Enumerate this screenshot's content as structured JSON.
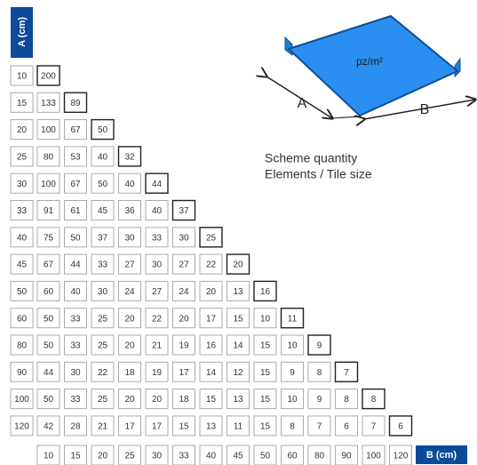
{
  "axis_a_label": "A (cm)",
  "axis_b_label": "B (cm)",
  "scheme": {
    "unit_label": "pz/m²",
    "arrow_a": "A",
    "arrow_b": "B",
    "caption_line1": "Scheme quantity",
    "caption_line2": "Elements / Tile size"
  },
  "columns": [
    "10",
    "15",
    "20",
    "25",
    "30",
    "33",
    "40",
    "45",
    "50",
    "60",
    "80",
    "90",
    "100",
    "120"
  ],
  "rows": [
    {
      "a": "10",
      "cells": [
        "200"
      ]
    },
    {
      "a": "15",
      "cells": [
        "133",
        "89"
      ]
    },
    {
      "a": "20",
      "cells": [
        "100",
        "67",
        "50"
      ]
    },
    {
      "a": "25",
      "cells": [
        "80",
        "53",
        "40",
        "32"
      ]
    },
    {
      "a": "30",
      "cells": [
        "100",
        "67",
        "50",
        "40",
        "44"
      ]
    },
    {
      "a": "33",
      "cells": [
        "91",
        "61",
        "45",
        "36",
        "40",
        "37"
      ]
    },
    {
      "a": "40",
      "cells": [
        "75",
        "50",
        "37",
        "30",
        "33",
        "30",
        "25"
      ]
    },
    {
      "a": "45",
      "cells": [
        "67",
        "44",
        "33",
        "27",
        "30",
        "27",
        "22",
        "20"
      ]
    },
    {
      "a": "50",
      "cells": [
        "60",
        "40",
        "30",
        "24",
        "27",
        "24",
        "20",
        "13",
        "16"
      ]
    },
    {
      "a": "60",
      "cells": [
        "50",
        "33",
        "25",
        "20",
        "22",
        "20",
        "17",
        "15",
        "10",
        "11"
      ]
    },
    {
      "a": "80",
      "cells": [
        "50",
        "33",
        "25",
        "20",
        "21",
        "19",
        "16",
        "14",
        "15",
        "10",
        "9"
      ]
    },
    {
      "a": "90",
      "cells": [
        "44",
        "30",
        "22",
        "18",
        "19",
        "17",
        "14",
        "12",
        "15",
        "9",
        "8",
        "7"
      ]
    },
    {
      "a": "100",
      "cells": [
        "50",
        "33",
        "25",
        "20",
        "20",
        "18",
        "15",
        "13",
        "15",
        "10",
        "9",
        "8",
        "8"
      ]
    },
    {
      "a": "120",
      "cells": [
        "42",
        "28",
        "21",
        "17",
        "17",
        "15",
        "13",
        "11",
        "15",
        "8",
        "7",
        "6",
        "7",
        "6"
      ]
    }
  ]
}
